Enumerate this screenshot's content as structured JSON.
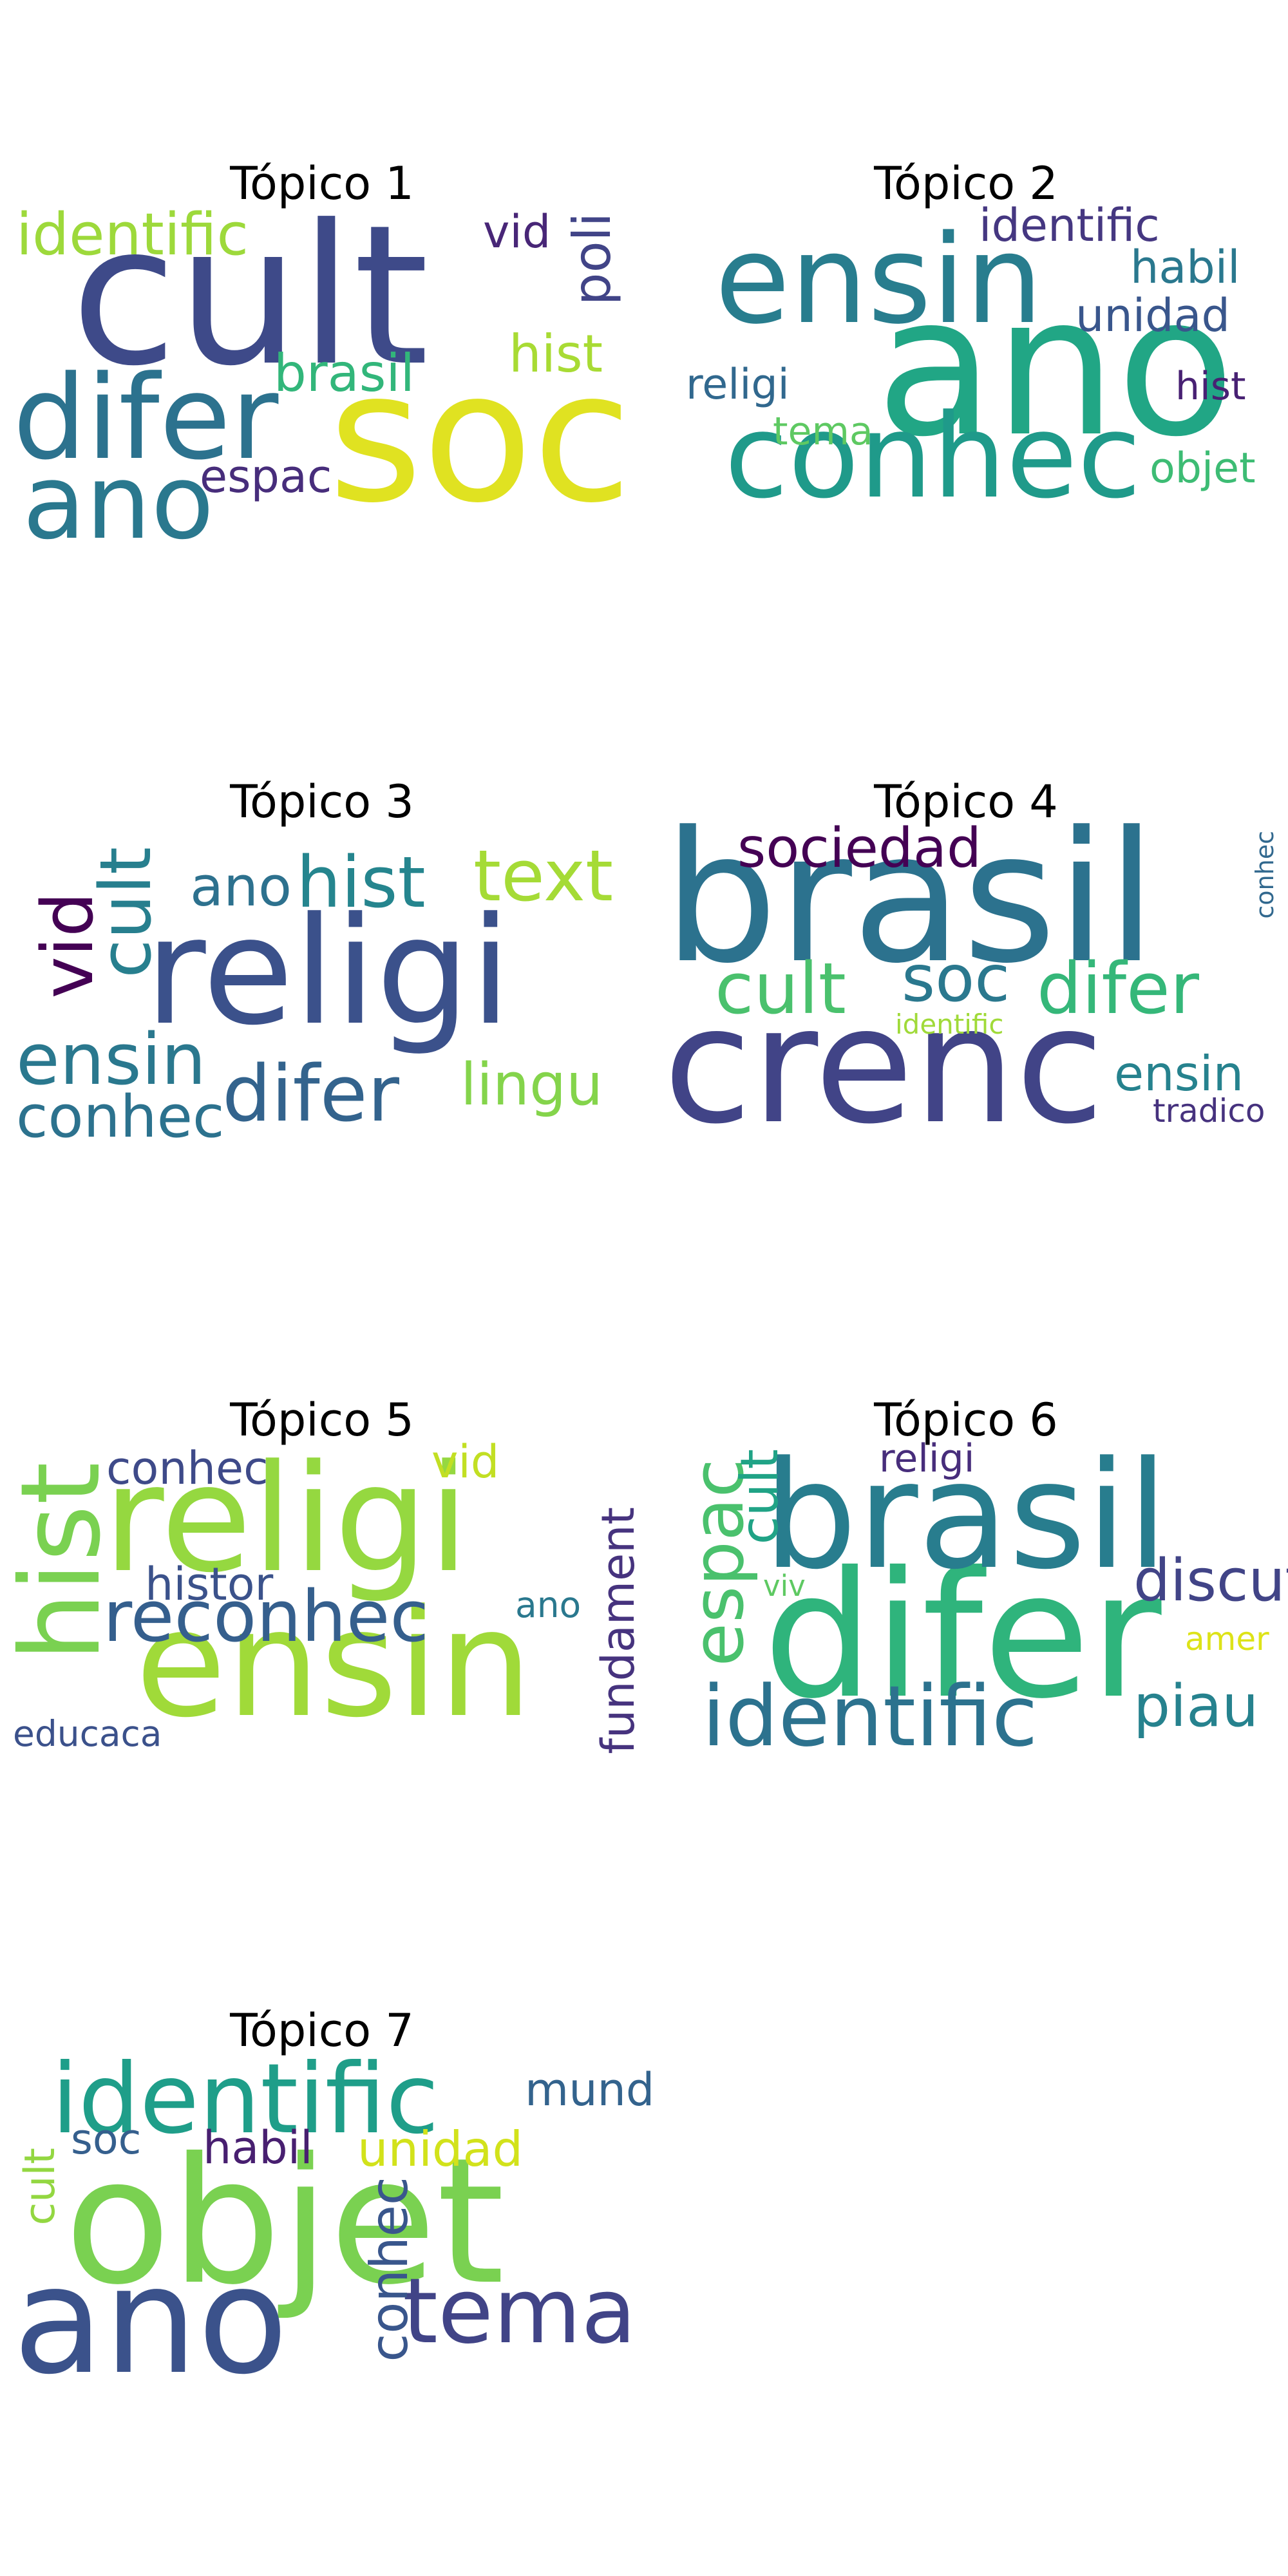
{
  "topics": [
    {
      "title": "Tópico 1",
      "words": [
        {
          "text": "cult",
          "color": "#3e4a89"
        },
        {
          "text": "soc",
          "color": "#e0e221"
        },
        {
          "text": "difer",
          "color": "#2c728e"
        },
        {
          "text": "ano",
          "color": "#2a788e"
        },
        {
          "text": "identific",
          "color": "#9dd93b"
        },
        {
          "text": "brasil",
          "color": "#32b67a"
        },
        {
          "text": "hist",
          "color": "#a8db34"
        },
        {
          "text": "poli",
          "color": "#414487"
        },
        {
          "text": "vid",
          "color": "#482677"
        },
        {
          "text": "espac",
          "color": "#472d7b"
        }
      ]
    },
    {
      "title": "Tópico 2",
      "words": [
        {
          "text": "ano",
          "color": "#21a685"
        },
        {
          "text": "ensin",
          "color": "#287d8e"
        },
        {
          "text": "conhec",
          "color": "#1f9a8a"
        },
        {
          "text": "identific",
          "color": "#453781"
        },
        {
          "text": "habil",
          "color": "#2a788e"
        },
        {
          "text": "unidad",
          "color": "#39568c"
        },
        {
          "text": "religi",
          "color": "#31688e"
        },
        {
          "text": "hist",
          "color": "#482173"
        },
        {
          "text": "tema",
          "color": "#5ec962"
        },
        {
          "text": "objet",
          "color": "#3dbc74"
        }
      ]
    },
    {
      "title": "Tópico 3",
      "words": [
        {
          "text": "religi",
          "color": "#3b518b"
        },
        {
          "text": "hist",
          "color": "#25858e"
        },
        {
          "text": "text",
          "color": "#a5db36"
        },
        {
          "text": "ano",
          "color": "#2d718e"
        },
        {
          "text": "cult",
          "color": "#277f8e"
        },
        {
          "text": "vid",
          "color": "#440154"
        },
        {
          "text": "ensin",
          "color": "#2a788e"
        },
        {
          "text": "difer",
          "color": "#33638d"
        },
        {
          "text": "lingu",
          "color": "#84d44b"
        },
        {
          "text": "conhec",
          "color": "#2c728e"
        }
      ]
    },
    {
      "title": "Tópico 4",
      "words": [
        {
          "text": "brasil",
          "color": "#2c728e"
        },
        {
          "text": "crenc",
          "color": "#414487"
        },
        {
          "text": "sociedad",
          "color": "#440154"
        },
        {
          "text": "cult",
          "color": "#4ac16d"
        },
        {
          "text": "soc",
          "color": "#2a788e"
        },
        {
          "text": "difer",
          "color": "#35b779"
        },
        {
          "text": "identific",
          "color": "#a0da39"
        },
        {
          "text": "ensin",
          "color": "#26828e"
        },
        {
          "text": "tradico",
          "color": "#46327e"
        },
        {
          "text": "conhec",
          "color": "#31688e"
        }
      ]
    },
    {
      "title": "Tópico 5",
      "words": [
        {
          "text": "religi",
          "color": "#95d840"
        },
        {
          "text": "ensin",
          "color": "#a0da39"
        },
        {
          "text": "hist",
          "color": "#7ad151"
        },
        {
          "text": "reconhec",
          "color": "#355f8d"
        },
        {
          "text": "conhec",
          "color": "#3e4a89"
        },
        {
          "text": "vid",
          "color": "#c2df23"
        },
        {
          "text": "histor",
          "color": "#3b528b"
        },
        {
          "text": "ano",
          "color": "#2a788e"
        },
        {
          "text": "fundament",
          "color": "#46337e"
        },
        {
          "text": "educaca",
          "color": "#3b518b"
        }
      ]
    },
    {
      "title": "Tópico 6",
      "words": [
        {
          "text": "difer",
          "color": "#2fb47c"
        },
        {
          "text": "brasil",
          "color": "#287d8e"
        },
        {
          "text": "identific",
          "color": "#2c728e"
        },
        {
          "text": "espac",
          "color": "#4ac16d"
        },
        {
          "text": "cult",
          "color": "#20a386"
        },
        {
          "text": "discut",
          "color": "#414487"
        },
        {
          "text": "piau",
          "color": "#26828e"
        },
        {
          "text": "religi",
          "color": "#472d7b"
        },
        {
          "text": "viv",
          "color": "#5ec962"
        },
        {
          "text": "amer",
          "color": "#dde318"
        }
      ]
    },
    {
      "title": "Tópico 7",
      "words": [
        {
          "text": "objet",
          "color": "#7ad151"
        },
        {
          "text": "ano",
          "color": "#3b528b"
        },
        {
          "text": "identific",
          "color": "#1f9e89"
        },
        {
          "text": "tema",
          "color": "#414487"
        },
        {
          "text": "conhec",
          "color": "#39568c"
        },
        {
          "text": "habil",
          "color": "#481f70"
        },
        {
          "text": "unidad",
          "color": "#d2e21b"
        },
        {
          "text": "soc",
          "color": "#355f8d"
        },
        {
          "text": "mund",
          "color": "#33638d"
        },
        {
          "text": "cult",
          "color": "#93d741"
        }
      ]
    }
  ]
}
